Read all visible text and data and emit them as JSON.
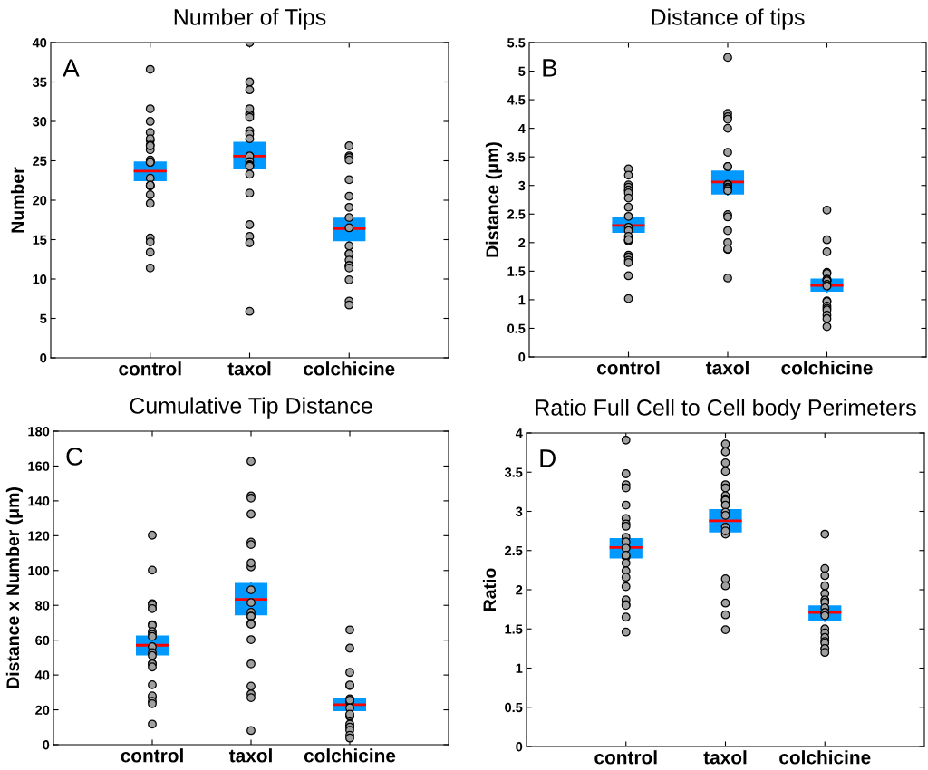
{
  "chart_data": [
    {
      "type": "box",
      "title": "Number of Tips",
      "ylabel": "Number",
      "annotations": [
        "A"
      ],
      "categories": [
        "control",
        "taxol",
        "colchicine"
      ],
      "ylim": [
        0,
        40
      ],
      "yticks": [
        0,
        5,
        10,
        15,
        20,
        25,
        30,
        35,
        40
      ],
      "grid": false,
      "series": [
        {
          "type": "box",
          "color": "#0099ff",
          "boxes": [
            {
              "low": 22.4,
              "q1": 22.4,
              "median": 23.7,
              "q3": 24.9,
              "high": 24.9
            },
            {
              "low": 23.9,
              "q1": 23.9,
              "median": 25.6,
              "q3": 27.4,
              "high": 27.4
            },
            {
              "low": 14.8,
              "q1": 14.8,
              "median": 16.4,
              "q3": 17.8,
              "high": 17.8
            }
          ]
        },
        {
          "type": "scatter",
          "color": "#a0a0a0",
          "marker": "circle",
          "x": [
            "control",
            "control",
            "control",
            "control",
            "control",
            "control",
            "control",
            "control",
            "control",
            "control",
            "control",
            "control",
            "control",
            "control",
            "control",
            "control",
            "control",
            "control",
            "control",
            "control",
            "control",
            "control",
            "control",
            "taxol",
            "taxol",
            "taxol",
            "taxol",
            "taxol",
            "taxol",
            "taxol",
            "taxol",
            "taxol",
            "taxol",
            "taxol",
            "taxol",
            "taxol",
            "taxol",
            "taxol",
            "taxol",
            "taxol",
            "taxol",
            "taxol",
            "taxol",
            "taxol",
            "colchicine",
            "colchicine",
            "colchicine",
            "colchicine",
            "colchicine",
            "colchicine",
            "colchicine",
            "colchicine",
            "colchicine",
            "colchicine",
            "colchicine",
            "colchicine",
            "colchicine",
            "colchicine",
            "colchicine",
            "colchicine",
            "colchicine",
            "colchicine",
            "colchicine"
          ],
          "values": [
            36.6,
            31.6,
            30.0,
            28.6,
            27.6,
            27.8,
            27.0,
            26.4,
            26.9,
            25.1,
            24.8,
            24.9,
            24.8,
            22.8,
            21.8,
            21.9,
            21.9,
            20.7,
            19.6,
            15.2,
            14.7,
            13.4,
            11.4,
            40.0,
            35.0,
            34.0,
            31.0,
            30.8,
            31.6,
            30.5,
            28.8,
            28.4,
            27.8,
            25.6,
            24.9,
            24.5,
            24.4,
            24.3,
            23.3,
            20.9,
            16.9,
            15.4,
            14.6,
            5.9,
            26.9,
            25.6,
            25.4,
            25.1,
            22.6,
            20.5,
            19.1,
            17.8,
            16.5,
            14.2,
            13.2,
            13.2,
            12.4,
            11.7,
            11.7,
            11.4,
            9.9,
            7.2,
            6.7
          ]
        }
      ]
    },
    {
      "type": "box",
      "title": "Distance of tips",
      "ylabel": "Distance (μm)",
      "annotations": [
        "B"
      ],
      "categories": [
        "control",
        "taxol",
        "colchicine"
      ],
      "ylim": [
        0,
        5.5
      ],
      "yticks": [
        0,
        0.5,
        1,
        1.5,
        2,
        2.5,
        3,
        3.5,
        4,
        4.5,
        5,
        5.5
      ],
      "grid": false,
      "series": [
        {
          "type": "box",
          "color": "#0099ff",
          "boxes": [
            {
              "low": 2.17,
              "q1": 2.17,
              "median": 2.3,
              "q3": 2.44,
              "high": 2.44
            },
            {
              "low": 2.84,
              "q1": 2.84,
              "median": 3.06,
              "q3": 3.26,
              "high": 3.26
            },
            {
              "low": 1.14,
              "q1": 1.14,
              "median": 1.25,
              "q3": 1.37,
              "high": 1.37
            }
          ]
        },
        {
          "type": "scatter",
          "color": "#a0a0a0",
          "marker": "circle",
          "x": [
            "control",
            "control",
            "control",
            "control",
            "control",
            "control",
            "control",
            "control",
            "control",
            "control",
            "control",
            "control",
            "control",
            "control",
            "control",
            "control",
            "control",
            "control",
            "control",
            "control",
            "control",
            "control",
            "control",
            "taxol",
            "taxol",
            "taxol",
            "taxol",
            "taxol",
            "taxol",
            "taxol",
            "taxol",
            "taxol",
            "taxol",
            "taxol",
            "taxol",
            "taxol",
            "taxol",
            "taxol",
            "taxol",
            "taxol",
            "taxol",
            "taxol",
            "taxol",
            "taxol",
            "colchicine",
            "colchicine",
            "colchicine",
            "colchicine",
            "colchicine",
            "colchicine",
            "colchicine",
            "colchicine",
            "colchicine",
            "colchicine",
            "colchicine",
            "colchicine",
            "colchicine",
            "colchicine",
            "colchicine",
            "colchicine",
            "colchicine",
            "colchicine",
            "colchicine"
          ],
          "values": [
            3.29,
            3.18,
            3.01,
            2.97,
            2.91,
            2.92,
            2.87,
            2.78,
            2.62,
            2.46,
            2.27,
            2.21,
            2.11,
            2.03,
            2.05,
            2.05,
            1.76,
            1.78,
            1.75,
            1.69,
            1.65,
            1.42,
            1.02,
            5.24,
            4.26,
            4.2,
            4.16,
            4.0,
            3.58,
            3.33,
            3.33,
            3.02,
            3.01,
            2.97,
            2.96,
            2.94,
            2.91,
            2.49,
            2.45,
            2.21,
            2.0,
            1.88,
            1.89,
            1.38,
            2.57,
            2.05,
            1.84,
            1.48,
            1.46,
            1.36,
            1.33,
            1.35,
            1.33,
            1.27,
            1.24,
            0.98,
            0.97,
            0.89,
            0.85,
            0.82,
            0.73,
            0.67,
            0.53
          ]
        }
      ]
    },
    {
      "type": "box",
      "title": "Cumulative Tip Distance",
      "ylabel": "Distance x Number (μm)",
      "annotations": [
        "C"
      ],
      "categories": [
        "control",
        "taxol",
        "colchicine"
      ],
      "ylim": [
        0,
        180
      ],
      "yticks": [
        0,
        20,
        40,
        60,
        80,
        100,
        120,
        140,
        160,
        180
      ],
      "grid": false,
      "series": [
        {
          "type": "box",
          "color": "#0099ff",
          "boxes": [
            {
              "low": 51.2,
              "q1": 51.2,
              "median": 57.1,
              "q3": 62.7,
              "high": 62.7
            },
            {
              "low": 74.3,
              "q1": 74.3,
              "median": 83.4,
              "q3": 92.8,
              "high": 92.8
            },
            {
              "low": 19.2,
              "q1": 19.2,
              "median": 23.0,
              "q3": 26.8,
              "high": 26.8
            }
          ]
        },
        {
          "type": "scatter",
          "color": "#a0a0a0",
          "marker": "circle",
          "x": [
            "control",
            "control",
            "control",
            "control",
            "control",
            "control",
            "control",
            "control",
            "control",
            "control",
            "control",
            "control",
            "control",
            "control",
            "control",
            "control",
            "control",
            "control",
            "control",
            "control",
            "control",
            "control",
            "control",
            "taxol",
            "taxol",
            "taxol",
            "taxol",
            "taxol",
            "taxol",
            "taxol",
            "taxol",
            "taxol",
            "taxol",
            "taxol",
            "taxol",
            "taxol",
            "taxol",
            "taxol",
            "taxol",
            "taxol",
            "taxol",
            "taxol",
            "taxol",
            "taxol",
            "colchicine",
            "colchicine",
            "colchicine",
            "colchicine",
            "colchicine",
            "colchicine",
            "colchicine",
            "colchicine",
            "colchicine",
            "colchicine",
            "colchicine",
            "colchicine",
            "colchicine",
            "colchicine",
            "colchicine",
            "colchicine",
            "colchicine",
            "colchicine"
          ],
          "values": [
            120.3,
            100.2,
            81.0,
            78.5,
            80.6,
            78.1,
            68.9,
            68.5,
            64.9,
            63.3,
            62.1,
            56.2,
            52.8,
            51.1,
            46.6,
            46.4,
            44.6,
            34.4,
            27.2,
            28.0,
            24.9,
            23.5,
            11.8,
            162.7,
            142.8,
            141.6,
            132.4,
            116.3,
            114.9,
            102.1,
            104.3,
            88.9,
            81.6,
            76.0,
            73.8,
            73.7,
            69.7,
            69.2,
            60.3,
            46.4,
            33.6,
            29.1,
            27.0,
            8.1,
            65.9,
            55.4,
            41.5,
            33.9,
            34.3,
            26.3,
            24.6,
            25.6,
            21.1,
            16.3,
            16.6,
            17.5,
            10.6,
            11.8,
            10.0,
            8.3,
            5.4,
            3.8
          ]
        }
      ]
    },
    {
      "type": "box",
      "title": "Ratio Full Cell to Cell body Perimeters",
      "ylabel": "Ratio",
      "annotations": [
        "D"
      ],
      "categories": [
        "control",
        "taxol",
        "colchicine"
      ],
      "ylim": [
        0,
        4
      ],
      "yticks": [
        0,
        0.5,
        1,
        1.5,
        2,
        2.5,
        3,
        3.5,
        4
      ],
      "grid": false,
      "series": [
        {
          "type": "box",
          "color": "#0099ff",
          "boxes": [
            {
              "low": 2.4,
              "q1": 2.4,
              "median": 2.54,
              "q3": 2.66,
              "high": 2.66
            },
            {
              "low": 2.73,
              "q1": 2.73,
              "median": 2.88,
              "q3": 3.03,
              "high": 3.03
            },
            {
              "low": 1.6,
              "q1": 1.6,
              "median": 1.71,
              "q3": 1.8,
              "high": 1.8
            }
          ]
        },
        {
          "type": "scatter",
          "color": "#a0a0a0",
          "marker": "circle",
          "x": [
            "control",
            "control",
            "control",
            "control",
            "control",
            "control",
            "control",
            "control",
            "control",
            "control",
            "control",
            "control",
            "control",
            "control",
            "control",
            "control",
            "control",
            "control",
            "control",
            "control",
            "control",
            "control",
            "control",
            "taxol",
            "taxol",
            "taxol",
            "taxol",
            "taxol",
            "taxol",
            "taxol",
            "taxol",
            "taxol",
            "taxol",
            "taxol",
            "taxol",
            "taxol",
            "taxol",
            "taxol",
            "taxol",
            "taxol",
            "taxol",
            "taxol",
            "taxol",
            "taxol",
            "colchicine",
            "colchicine",
            "colchicine",
            "colchicine",
            "colchicine",
            "colchicine",
            "colchicine",
            "colchicine",
            "colchicine",
            "colchicine",
            "colchicine",
            "colchicine",
            "colchicine",
            "colchicine",
            "colchicine",
            "colchicine",
            "colchicine",
            "colchicine",
            "colchicine"
          ],
          "values": [
            3.91,
            3.48,
            3.34,
            3.3,
            3.08,
            2.91,
            2.84,
            2.81,
            2.67,
            2.61,
            2.54,
            2.53,
            2.42,
            2.44,
            2.34,
            2.24,
            2.16,
            2.04,
            1.87,
            1.81,
            1.8,
            1.65,
            1.46,
            3.86,
            3.76,
            3.62,
            3.51,
            3.34,
            3.3,
            3.2,
            3.16,
            3.14,
            3.14,
            3.08,
            2.99,
            2.95,
            2.8,
            2.71,
            2.75,
            2.14,
            2.05,
            1.83,
            1.68,
            1.49,
            2.71,
            2.27,
            2.18,
            2.05,
            1.95,
            1.87,
            1.84,
            1.77,
            1.71,
            1.71,
            1.67,
            1.5,
            1.45,
            1.39,
            1.34,
            1.32,
            1.25,
            1.25,
            1.2
          ]
        }
      ]
    }
  ]
}
